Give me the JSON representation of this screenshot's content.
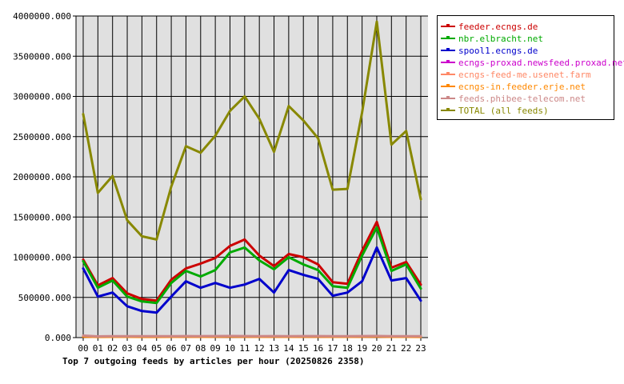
{
  "chart_data": {
    "type": "line",
    "title": "Top 7 outgoing feeds by articles per hour (20250826 2358)",
    "categories": [
      "00",
      "01",
      "02",
      "03",
      "04",
      "05",
      "06",
      "07",
      "08",
      "09",
      "10",
      "11",
      "12",
      "13",
      "14",
      "15",
      "16",
      "17",
      "18",
      "19",
      "20",
      "21",
      "22",
      "23"
    ],
    "yticks": [
      "0.000",
      "500000.000",
      "1000000.000",
      "1500000.000",
      "2000000.000",
      "2500000.000",
      "3000000.000",
      "3500000.000",
      "4000000.000"
    ],
    "ylim": [
      0,
      4000000
    ],
    "grid": true,
    "legend_position": "right",
    "series": [
      {
        "name": "feeder.ecngs.de",
        "color": "#cc0000",
        "values": [
          970000,
          650000,
          740000,
          550000,
          480000,
          460000,
          720000,
          860000,
          920000,
          990000,
          1140000,
          1220000,
          1020000,
          890000,
          1040000,
          1000000,
          910000,
          690000,
          670000,
          1080000,
          1440000,
          870000,
          940000,
          660000
        ]
      },
      {
        "name": "nbr.elbracht.net",
        "color": "#00aa00",
        "values": [
          950000,
          620000,
          710000,
          510000,
          450000,
          430000,
          680000,
          830000,
          760000,
          840000,
          1060000,
          1120000,
          960000,
          850000,
          1000000,
          910000,
          840000,
          640000,
          620000,
          1020000,
          1370000,
          830000,
          910000,
          610000
        ]
      },
      {
        "name": "spool1.ecngs.de",
        "color": "#0000cc",
        "values": [
          860000,
          510000,
          560000,
          390000,
          330000,
          310000,
          510000,
          700000,
          620000,
          680000,
          620000,
          660000,
          730000,
          560000,
          840000,
          780000,
          730000,
          520000,
          560000,
          700000,
          1120000,
          710000,
          740000,
          460000
        ]
      },
      {
        "name": "ecngs-proxad.newsfeed.proxad.net",
        "color": "#cc00cc",
        "values": [
          15000,
          12000,
          14000,
          14000,
          13000,
          13000,
          14000,
          15000,
          14000,
          15000,
          16000,
          15000,
          14000,
          15000,
          14000,
          15000,
          15000,
          14000,
          14000,
          15000,
          16000,
          14000,
          14000,
          13000
        ]
      },
      {
        "name": "ecngs-feed-me.usenet.farm",
        "color": "#ff8866",
        "values": [
          20000,
          10000,
          12000,
          12000,
          11000,
          11000,
          12000,
          13000,
          12000,
          13000,
          14000,
          13000,
          12000,
          13000,
          12000,
          13000,
          13000,
          12000,
          12000,
          13000,
          14000,
          12000,
          12000,
          11000
        ]
      },
      {
        "name": "ecngs-in.feeder.erje.net",
        "color": "#ff8800",
        "values": [
          12000,
          9000,
          10000,
          10000,
          9000,
          9000,
          10000,
          11000,
          10000,
          11000,
          12000,
          11000,
          10000,
          11000,
          10000,
          11000,
          11000,
          10000,
          10000,
          11000,
          12000,
          10000,
          10000,
          9000
        ]
      },
      {
        "name": "feeds.phibee-telecom.net",
        "color": "#cc8888",
        "values": [
          25000,
          15000,
          18000,
          18000,
          17000,
          17000,
          18000,
          19000,
          18000,
          19000,
          20000,
          19000,
          18000,
          19000,
          18000,
          19000,
          19000,
          18000,
          18000,
          19000,
          20000,
          18000,
          18000,
          17000
        ]
      },
      {
        "name": "TOTAL (all feeds)",
        "color": "#888800",
        "values": [
          2780000,
          1800000,
          2010000,
          1460000,
          1260000,
          1220000,
          1880000,
          2380000,
          2300000,
          2510000,
          2820000,
          3000000,
          2720000,
          2310000,
          2880000,
          2700000,
          2480000,
          1840000,
          1850000,
          2800000,
          3930000,
          2400000,
          2570000,
          1720000
        ]
      }
    ]
  }
}
